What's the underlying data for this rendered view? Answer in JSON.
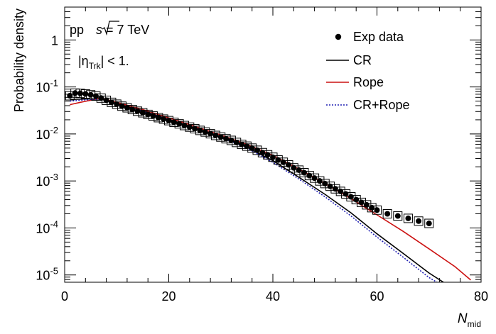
{
  "chart_data": {
    "type": "scatter",
    "title": "",
    "xlabel": "N",
    "xlabel_sub": "mid",
    "ylabel": "Probability density",
    "xlim": [
      0,
      80
    ],
    "ylim": [
      7e-06,
      5
    ],
    "y_log": true,
    "x_ticks": [
      "0",
      "20",
      "40",
      "60",
      "80"
    ],
    "y_ticks": [
      {
        "base": "10",
        "exp": "-5"
      },
      {
        "base": "10",
        "exp": "-4"
      },
      {
        "base": "10",
        "exp": "-3"
      },
      {
        "base": "10",
        "exp": "-2"
      },
      {
        "base": "10",
        "exp": "-1"
      },
      {
        "base": "1",
        "exp": ""
      }
    ],
    "annotations": {
      "energy": {
        "pre": "pp ",
        "sqrt": "s",
        "post": " = 7 TeV"
      },
      "eta": {
        "pre": "|η",
        "sub": "Trk",
        "post": "| < 1."
      }
    },
    "legend_position": "top-right",
    "series": [
      {
        "name": "Exp data",
        "kind": "points",
        "color": "#000000",
        "x": [
          1,
          2,
          3,
          4,
          5,
          6,
          7,
          8,
          9,
          10,
          11,
          12,
          13,
          14,
          15,
          16,
          17,
          18,
          19,
          20,
          21,
          22,
          23,
          24,
          25,
          26,
          27,
          28,
          29,
          30,
          31,
          32,
          33,
          34,
          35,
          36,
          37,
          38,
          39,
          40,
          41,
          42,
          43,
          44,
          45,
          46,
          47,
          48,
          49,
          50,
          51,
          52,
          53,
          54,
          55,
          56,
          57,
          58,
          59,
          60,
          62,
          64,
          66,
          68,
          70
        ],
        "y": [
          0.065,
          0.074,
          0.073,
          0.071,
          0.068,
          0.064,
          0.058,
          0.052,
          0.047,
          0.043,
          0.039,
          0.036,
          0.033,
          0.0305,
          0.0282,
          0.026,
          0.0241,
          0.0222,
          0.0207,
          0.0192,
          0.0177,
          0.0164,
          0.0151,
          0.014,
          0.0129,
          0.0119,
          0.011,
          0.0101,
          0.0093,
          0.0086,
          0.0079,
          0.0073,
          0.0066,
          0.006,
          0.0055,
          0.005,
          0.0045,
          0.004,
          0.0036,
          0.0032,
          0.0028,
          0.0025,
          0.0022,
          0.0019,
          0.0017,
          0.0015,
          0.0013,
          0.00115,
          0.001,
          0.00088,
          0.00077,
          0.00068,
          0.0006,
          0.00053,
          0.00046,
          0.0004,
          0.00035,
          0.00031,
          0.00027,
          0.00024,
          0.0002,
          0.00018,
          0.00016,
          0.00014,
          0.000125
        ]
      },
      {
        "name": "CR",
        "kind": "line",
        "color": "#000000",
        "dash": "solid",
        "x": [
          1,
          3,
          5,
          7,
          10,
          15,
          20,
          25,
          30,
          35,
          40,
          45,
          50,
          55,
          60,
          65,
          70,
          73.5
        ],
        "y": [
          0.054,
          0.055,
          0.056,
          0.055,
          0.044,
          0.031,
          0.0205,
          0.0135,
          0.0088,
          0.0052,
          0.0027,
          0.0012,
          0.00052,
          0.00021,
          7.5e-05,
          2.9e-05,
          1.1e-05,
          6.2e-06
        ]
      },
      {
        "name": "Rope",
        "kind": "line",
        "color": "#cc1111",
        "dash": "solid",
        "x": [
          1,
          3,
          5,
          7,
          10,
          15,
          20,
          25,
          30,
          35,
          40,
          45,
          50,
          55,
          60,
          65,
          70,
          75,
          78
        ],
        "y": [
          0.042,
          0.047,
          0.052,
          0.058,
          0.047,
          0.033,
          0.022,
          0.0145,
          0.0095,
          0.006,
          0.0035,
          0.0018,
          0.00088,
          0.00042,
          0.00019,
          8.5e-05,
          3.6e-05,
          1.5e-05,
          7.8e-06
        ]
      },
      {
        "name": "CR+Rope",
        "kind": "line",
        "color": "#1f1fb3",
        "dash": "dotted",
        "x": [
          1,
          3,
          5,
          7,
          10,
          15,
          20,
          25,
          30,
          35,
          40,
          45,
          50,
          55,
          60,
          65,
          70,
          72.5
        ],
        "y": [
          0.05,
          0.052,
          0.054,
          0.055,
          0.044,
          0.03,
          0.02,
          0.013,
          0.0085,
          0.005,
          0.0025,
          0.0011,
          0.00046,
          0.00018,
          6.4e-05,
          2.4e-05,
          8.8e-06,
          6e-06
        ]
      }
    ]
  }
}
